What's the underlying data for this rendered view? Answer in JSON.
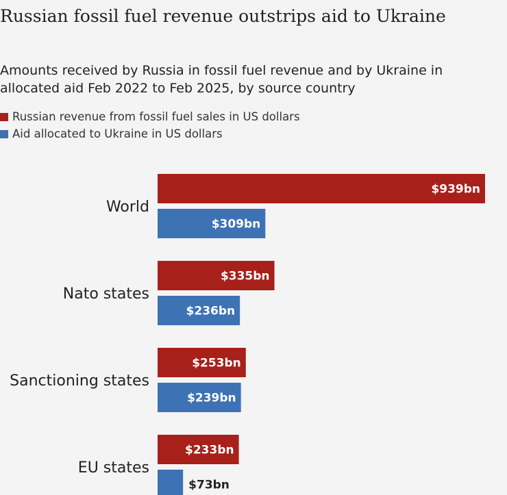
{
  "chart_data": {
    "type": "bar",
    "orientation": "horizontal",
    "title": "Russian fossil fuel revenue outstrips aid to Ukraine",
    "subtitle": "Amounts received by Russia in fossil fuel revenue and by Ukraine in allocated aid Feb 2022 to Feb 2025, by source country",
    "categories": [
      "World",
      "Nato states",
      "Sanctioning states",
      "EU states"
    ],
    "series": [
      {
        "name": "Russian revenue from fossil fuel sales in US dollars",
        "color": "#a8201a",
        "values": [
          939,
          335,
          253,
          233
        ],
        "labels": [
          "$939bn",
          "$335bn",
          "$253bn",
          "$233bn"
        ]
      },
      {
        "name": "Aid allocated to Ukraine in US dollars",
        "color": "#3d72b4",
        "values": [
          309,
          236,
          239,
          73
        ],
        "labels": [
          "$309bn",
          "$236bn",
          "$239bn",
          "$73bn"
        ]
      }
    ],
    "xlim": [
      0,
      939
    ],
    "grid": false,
    "legend": "top-left"
  }
}
